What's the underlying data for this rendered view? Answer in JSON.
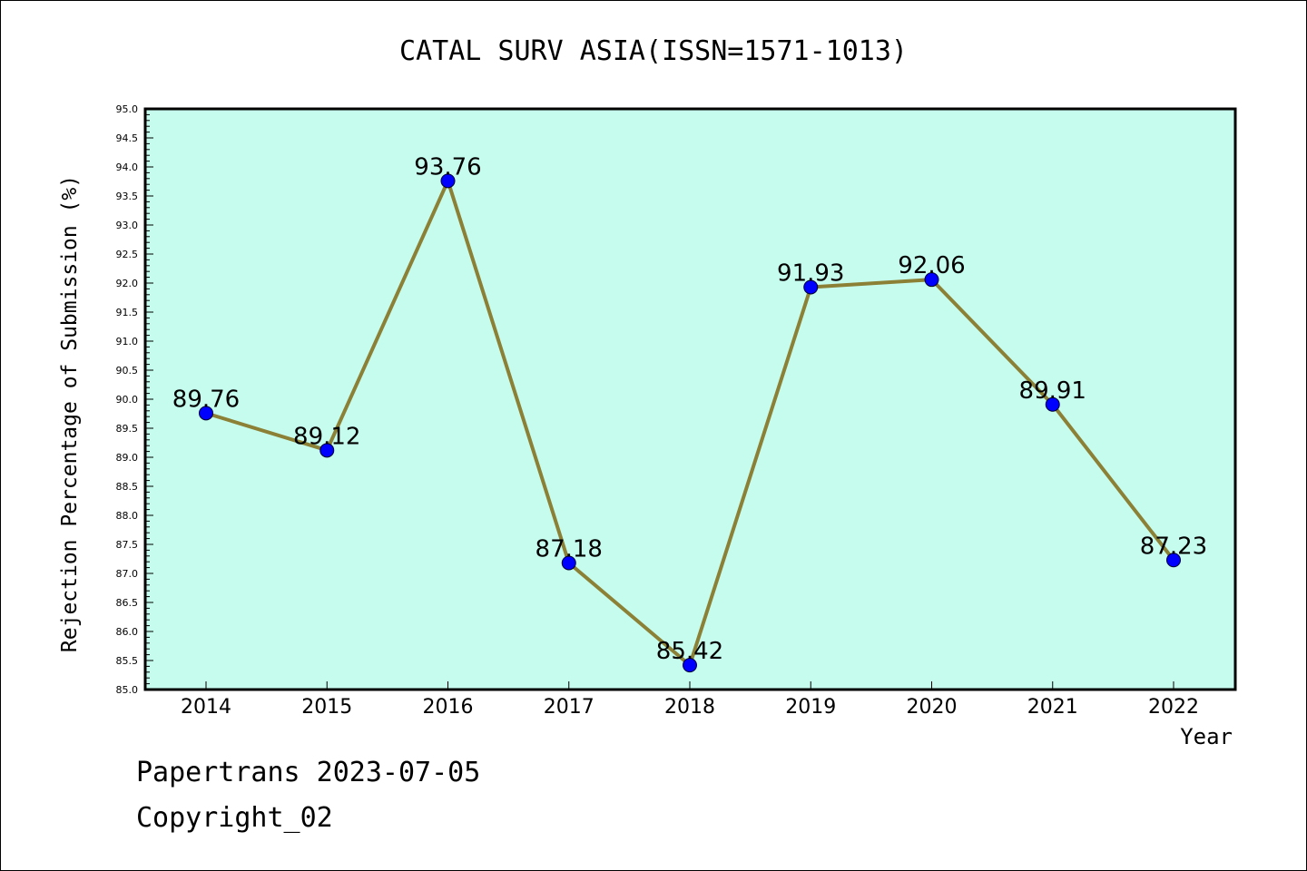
{
  "chart_data": {
    "type": "line",
    "title": "CATAL SURV ASIA(ISSN=1571-1013)",
    "xlabel": "Year",
    "ylabel": "Rejection Percentage of Submission (%)",
    "categories": [
      "2014",
      "2015",
      "2016",
      "2017",
      "2018",
      "2019",
      "2020",
      "2021",
      "2022"
    ],
    "values": [
      89.76,
      89.12,
      93.76,
      87.18,
      85.42,
      91.93,
      92.06,
      89.91,
      87.23
    ],
    "data_labels": [
      "89.76",
      "89.12",
      "93.76",
      "87.18",
      "85.42",
      "91.93",
      "92.06",
      "89.91",
      "87.23"
    ],
    "ylim": [
      85.0,
      95.0
    ],
    "ytick_step": 0.5,
    "ytick_labels": [
      "85.0",
      "85.5",
      "86.0",
      "86.5",
      "87.0",
      "87.5",
      "88.0",
      "88.5",
      "89.0",
      "89.5",
      "90.0",
      "90.5",
      "91.0",
      "91.5",
      "92.0",
      "92.5",
      "93.0",
      "93.5",
      "94.0",
      "94.5",
      "95.0"
    ],
    "grid": false,
    "colors": {
      "plot_background": "#c6fcee",
      "line": "#8b8035",
      "marker": "#0000ff"
    }
  },
  "footer": {
    "line1": "Papertrans 2023-07-05",
    "line2": "Copyright_02"
  }
}
